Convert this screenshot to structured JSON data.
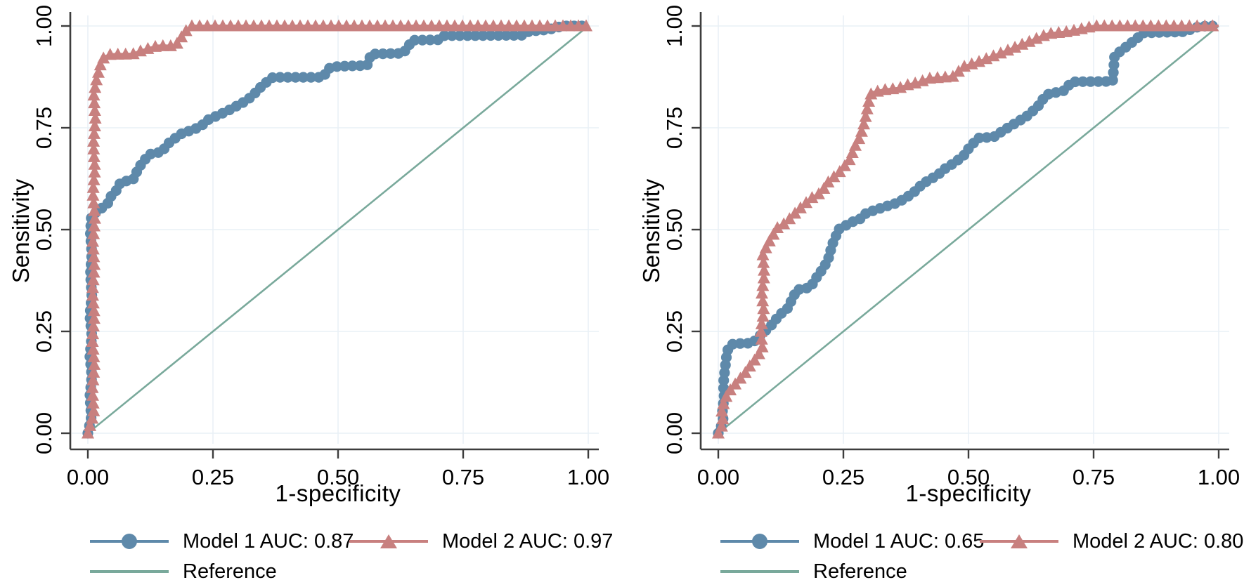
{
  "style": {
    "background": "#ffffff",
    "grid_color": "#e9f0f6",
    "axis_color": "#3d3d3d",
    "text_color": "#000000"
  },
  "chart_data": [
    {
      "type": "line",
      "panel": "left",
      "xlabel": "1-specificity",
      "ylabel": "Sensitivity",
      "xlim": [
        0,
        1
      ],
      "ylim": [
        0,
        1
      ],
      "xticks": [
        "0.00",
        "0.25",
        "0.50",
        "0.75",
        "1.00"
      ],
      "yticks": [
        "0.00",
        "0.25",
        "0.50",
        "0.75",
        "1.00"
      ],
      "tick_values": [
        0,
        0.25,
        0.5,
        0.75,
        1
      ],
      "grid": true,
      "legend_position": "below",
      "series": [
        {
          "name": "model1",
          "label": "Model 1 AUC: 0.87",
          "color": "#5e89aa",
          "marker": "circle",
          "points": [
            [
              0,
              0
            ],
            [
              0.007,
              0.04
            ],
            [
              0.004,
              0.09
            ],
            [
              0.008,
              0.14
            ],
            [
              0.004,
              0.19
            ],
            [
              0.008,
              0.24
            ],
            [
              0.004,
              0.29
            ],
            [
              0.008,
              0.34
            ],
            [
              0.005,
              0.39
            ],
            [
              0.008,
              0.44
            ],
            [
              0.005,
              0.49
            ],
            [
              0.007,
              0.535
            ],
            [
              0.02,
              0.545
            ],
            [
              0.03,
              0.555
            ],
            [
              0.04,
              0.565
            ],
            [
              0.045,
              0.58
            ],
            [
              0.055,
              0.592
            ],
            [
              0.06,
              0.604
            ],
            [
              0.066,
              0.617
            ],
            [
              0.09,
              0.622
            ],
            [
              0.095,
              0.634
            ],
            [
              0.101,
              0.651
            ],
            [
              0.114,
              0.672
            ],
            [
              0.123,
              0.685
            ],
            [
              0.149,
              0.691
            ],
            [
              0.157,
              0.708
            ],
            [
              0.174,
              0.724
            ],
            [
              0.189,
              0.737
            ],
            [
              0.21,
              0.745
            ],
            [
              0.226,
              0.754
            ],
            [
              0.241,
              0.77
            ],
            [
              0.263,
              0.782
            ],
            [
              0.283,
              0.794
            ],
            [
              0.301,
              0.806
            ],
            [
              0.316,
              0.816
            ],
            [
              0.331,
              0.831
            ],
            [
              0.342,
              0.846
            ],
            [
              0.356,
              0.861
            ],
            [
              0.37,
              0.874
            ],
            [
              0.47,
              0.874
            ],
            [
              0.482,
              0.896
            ],
            [
              0.5,
              0.901
            ],
            [
              0.558,
              0.903
            ],
            [
              0.566,
              0.931
            ],
            [
              0.63,
              0.933
            ],
            [
              0.641,
              0.951
            ],
            [
              0.648,
              0.965
            ],
            [
              0.7,
              0.966
            ],
            [
              0.712,
              0.976
            ],
            [
              0.868,
              0.977
            ],
            [
              0.882,
              0.987
            ],
            [
              0.92,
              0.991
            ],
            [
              0.95,
              1
            ],
            [
              1,
              1
            ]
          ]
        },
        {
          "name": "model2",
          "label": "Model 2 AUC: 0.97",
          "color": "#c8807f",
          "marker": "triangle",
          "points": [
            [
              0,
              0
            ],
            [
              0.012,
              0.05
            ],
            [
              0.009,
              0.11
            ],
            [
              0.013,
              0.17
            ],
            [
              0.009,
              0.23
            ],
            [
              0.013,
              0.29
            ],
            [
              0.009,
              0.35
            ],
            [
              0.013,
              0.41
            ],
            [
              0.01,
              0.47
            ],
            [
              0.014,
              0.53
            ],
            [
              0.01,
              0.59
            ],
            [
              0.014,
              0.65
            ],
            [
              0.011,
              0.71
            ],
            [
              0.015,
              0.77
            ],
            [
              0.012,
              0.83
            ],
            [
              0.016,
              0.862
            ],
            [
              0.02,
              0.88
            ],
            [
              0.024,
              0.9
            ],
            [
              0.028,
              0.917
            ],
            [
              0.035,
              0.925
            ],
            [
              0.045,
              0.93
            ],
            [
              0.09,
              0.931
            ],
            [
              0.1,
              0.936
            ],
            [
              0.112,
              0.941
            ],
            [
              0.125,
              0.946
            ],
            [
              0.14,
              0.951
            ],
            [
              0.175,
              0.951
            ],
            [
              0.182,
              0.964
            ],
            [
              0.189,
              0.976
            ],
            [
              0.196,
              0.988
            ],
            [
              0.207,
              1
            ],
            [
              1,
              1
            ]
          ]
        },
        {
          "name": "reference",
          "label": "Reference",
          "color": "#79a99b",
          "marker": "none",
          "points": [
            [
              0,
              0
            ],
            [
              1,
              1
            ]
          ]
        }
      ]
    },
    {
      "type": "line",
      "panel": "right",
      "xlabel": "1-specificity",
      "ylabel": "Sensitivity",
      "xlim": [
        0,
        1
      ],
      "ylim": [
        0,
        1
      ],
      "xticks": [
        "0.00",
        "0.25",
        "0.50",
        "0.75",
        "1.00"
      ],
      "yticks": [
        "0.00",
        "0.25",
        "0.50",
        "0.75",
        "1.00"
      ],
      "tick_values": [
        0,
        0.25,
        0.5,
        0.75,
        1
      ],
      "grid": true,
      "legend_position": "below",
      "series": [
        {
          "name": "model1",
          "label": "Model 1 AUC: 0.65",
          "color": "#5e89aa",
          "marker": "circle",
          "points": [
            [
              0,
              0
            ],
            [
              0.01,
              0.03
            ],
            [
              0.008,
              0.06
            ],
            [
              0.012,
              0.085
            ],
            [
              0.01,
              0.12
            ],
            [
              0.013,
              0.155
            ],
            [
              0.016,
              0.185
            ],
            [
              0.02,
              0.21
            ],
            [
              0.03,
              0.22
            ],
            [
              0.068,
              0.221
            ],
            [
              0.08,
              0.236
            ],
            [
              0.092,
              0.249
            ],
            [
              0.11,
              0.27
            ],
            [
              0.12,
              0.288
            ],
            [
              0.138,
              0.306
            ],
            [
              0.148,
              0.33
            ],
            [
              0.157,
              0.352
            ],
            [
              0.184,
              0.358
            ],
            [
              0.198,
              0.386
            ],
            [
              0.212,
              0.409
            ],
            [
              0.221,
              0.432
            ],
            [
              0.227,
              0.461
            ],
            [
              0.235,
              0.484
            ],
            [
              0.241,
              0.501
            ],
            [
              0.268,
              0.519
            ],
            [
              0.282,
              0.525
            ],
            [
              0.296,
              0.541
            ],
            [
              0.311,
              0.547
            ],
            [
              0.337,
              0.558
            ],
            [
              0.356,
              0.565
            ],
            [
              0.374,
              0.577
            ],
            [
              0.393,
              0.594
            ],
            [
              0.407,
              0.611
            ],
            [
              0.421,
              0.622
            ],
            [
              0.439,
              0.634
            ],
            [
              0.448,
              0.646
            ],
            [
              0.462,
              0.656
            ],
            [
              0.476,
              0.668
            ],
            [
              0.49,
              0.681
            ],
            [
              0.502,
              0.702
            ],
            [
              0.52,
              0.725
            ],
            [
              0.55,
              0.727
            ],
            [
              0.568,
              0.742
            ],
            [
              0.6,
              0.766
            ],
            [
              0.615,
              0.777
            ],
            [
              0.638,
              0.801
            ],
            [
              0.647,
              0.818
            ],
            [
              0.658,
              0.832
            ],
            [
              0.69,
              0.841
            ],
            [
              0.707,
              0.863
            ],
            [
              0.788,
              0.864
            ],
            [
              0.792,
              0.927
            ],
            [
              0.81,
              0.944
            ],
            [
              0.828,
              0.961
            ],
            [
              0.85,
              0.983
            ],
            [
              0.934,
              0.986
            ],
            [
              0.952,
              0.996
            ],
            [
              0.975,
              1
            ],
            [
              1,
              1
            ]
          ]
        },
        {
          "name": "model2",
          "label": "Model 2 AUC: 0.80",
          "color": "#c8807f",
          "marker": "triangle",
          "points": [
            [
              0,
              0
            ],
            [
              0.01,
              0.025
            ],
            [
              0.007,
              0.055
            ],
            [
              0.012,
              0.08
            ],
            [
              0.02,
              0.1
            ],
            [
              0.03,
              0.115
            ],
            [
              0.04,
              0.13
            ],
            [
              0.051,
              0.143
            ],
            [
              0.058,
              0.157
            ],
            [
              0.07,
              0.175
            ],
            [
              0.08,
              0.192
            ],
            [
              0.088,
              0.21
            ],
            [
              0.085,
              0.255
            ],
            [
              0.091,
              0.3
            ],
            [
              0.087,
              0.345
            ],
            [
              0.092,
              0.39
            ],
            [
              0.089,
              0.44
            ],
            [
              0.1,
              0.467
            ],
            [
              0.111,
              0.49
            ],
            [
              0.12,
              0.508
            ],
            [
              0.133,
              0.515
            ],
            [
              0.15,
              0.536
            ],
            [
              0.17,
              0.56
            ],
            [
              0.19,
              0.581
            ],
            [
              0.205,
              0.59
            ],
            [
              0.22,
              0.617
            ],
            [
              0.235,
              0.634
            ],
            [
              0.246,
              0.646
            ],
            [
              0.263,
              0.673
            ],
            [
              0.272,
              0.702
            ],
            [
              0.282,
              0.725
            ],
            [
              0.289,
              0.751
            ],
            [
              0.295,
              0.78
            ],
            [
              0.3,
              0.812
            ],
            [
              0.306,
              0.836
            ],
            [
              0.33,
              0.843
            ],
            [
              0.36,
              0.847
            ],
            [
              0.38,
              0.856
            ],
            [
              0.4,
              0.861
            ],
            [
              0.42,
              0.871
            ],
            [
              0.47,
              0.876
            ],
            [
              0.49,
              0.9
            ],
            [
              0.52,
              0.912
            ],
            [
              0.56,
              0.931
            ],
            [
              0.6,
              0.951
            ],
            [
              0.64,
              0.971
            ],
            [
              0.66,
              0.981
            ],
            [
              0.7,
              0.986
            ],
            [
              0.752,
              1
            ],
            [
              1,
              1
            ]
          ]
        },
        {
          "name": "reference",
          "label": "Reference",
          "color": "#79a99b",
          "marker": "none",
          "points": [
            [
              0,
              0
            ],
            [
              1,
              1
            ]
          ]
        }
      ]
    }
  ]
}
